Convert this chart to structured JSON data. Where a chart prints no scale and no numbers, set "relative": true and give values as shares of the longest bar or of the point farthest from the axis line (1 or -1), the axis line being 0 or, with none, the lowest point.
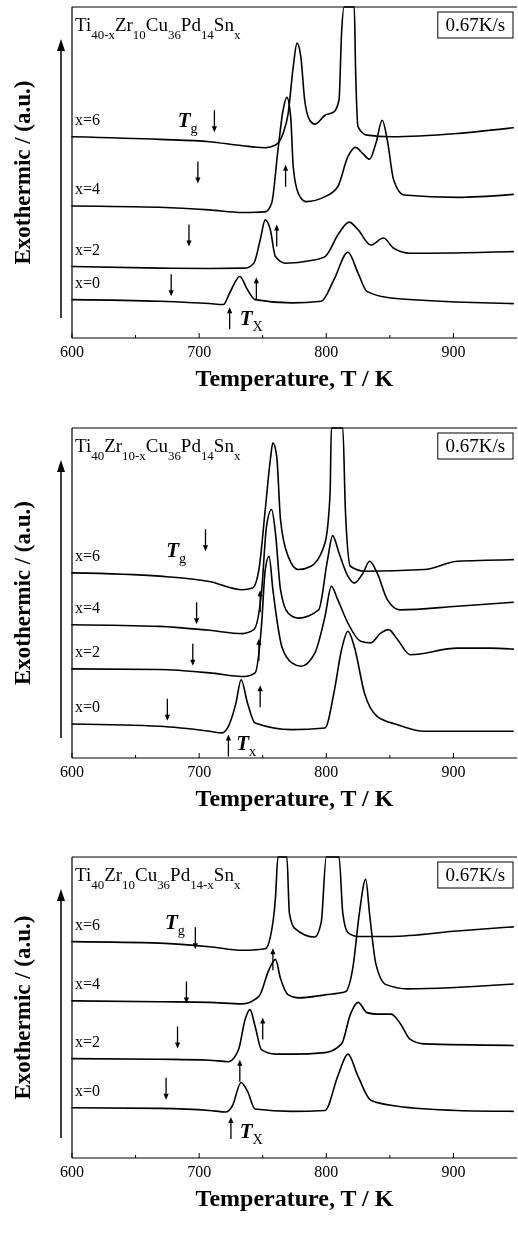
{
  "chart_data": [
    {
      "type": "line",
      "relative": true,
      "title": "Ti$_{40-x}$Zr$_{10}$Cu$_{36}$Pd$_{14}$Sn$_{x}$",
      "xlabel": "Temperature, T / K",
      "ylabel": "Exothermic / (a.u.)",
      "xlim": [
        600,
        950
      ],
      "xticks": [
        600,
        {
          "value": 650,
          "label": null
        },
        700,
        {
          "value": 750,
          "label": null
        },
        800,
        {
          "value": 850,
          "label": null
        },
        900
      ],
      "annotations": [
        "0.67K/s",
        "T$_{g}$",
        "T$_{X}$"
      ],
      "series": [
        {
          "name": "x=6",
          "color": "#000000",
          "x": [
            600,
            669,
            708,
            734,
            752,
            760,
            766,
            770,
            774,
            777,
            780,
            783,
            787,
            791,
            799,
            806,
            810,
            812,
            814,
            822,
            823,
            825,
            832,
            851,
            903,
            947
          ],
          "values": [
            0.608,
            0.6,
            0.593,
            0.581,
            0.575,
            0.583,
            0.618,
            0.678,
            0.819,
            0.891,
            0.849,
            0.719,
            0.658,
            0.646,
            0.673,
            0.683,
            0.719,
            0.92,
            1.0,
            1.0,
            0.819,
            0.638,
            0.613,
            0.608,
            0.618,
            0.635
          ]
        },
        {
          "name": "x=4",
          "color": "#000000",
          "x": [
            600,
            669,
            708,
            734,
            752,
            757,
            762,
            766,
            769,
            772,
            774,
            778,
            784,
            799,
            809,
            817,
            823,
            829,
            834,
            839,
            844,
            848,
            853,
            861,
            903,
            947
          ],
          "values": [
            0.399,
            0.395,
            0.387,
            0.379,
            0.381,
            0.407,
            0.568,
            0.688,
            0.727,
            0.668,
            0.518,
            0.437,
            0.412,
            0.427,
            0.457,
            0.548,
            0.576,
            0.556,
            0.54,
            0.588,
            0.658,
            0.598,
            0.477,
            0.432,
            0.425,
            0.434
          ]
        },
        {
          "name": "x=2",
          "color": "#000000",
          "x": [
            600,
            669,
            708,
            736,
            743,
            748,
            752,
            756,
            760,
            768,
            788,
            799,
            810,
            818,
            825,
            835,
            845,
            853,
            866,
            947
          ],
          "values": [
            0.216,
            0.211,
            0.21,
            0.211,
            0.226,
            0.296,
            0.357,
            0.327,
            0.246,
            0.226,
            0.234,
            0.246,
            0.317,
            0.35,
            0.327,
            0.281,
            0.302,
            0.271,
            0.256,
            0.261
          ]
        },
        {
          "name": "x=0",
          "color": "#000000",
          "x": [
            600,
            669,
            708,
            719,
            724,
            732,
            738,
            744,
            773,
            796,
            806,
            817,
            825,
            832,
            851,
            947
          ],
          "values": [
            0.116,
            0.111,
            0.104,
            0.101,
            0.136,
            0.186,
            0.146,
            0.116,
            0.106,
            0.111,
            0.176,
            0.259,
            0.196,
            0.141,
            0.121,
            0.104
          ]
        }
      ]
    },
    {
      "type": "line",
      "relative": true,
      "title": "Ti$_{40}$Zr$_{10-x}$Cu$_{36}$Pd$_{14}$Sn$_{x}$",
      "xlabel": "Temperature, T / K",
      "ylabel": "Exothermic / (a.u.)",
      "xlim": [
        600,
        950
      ],
      "xticks": [
        600,
        {
          "value": 650,
          "label": null
        },
        700,
        {
          "value": 750,
          "label": null
        },
        800,
        {
          "value": 850,
          "label": null
        },
        900
      ],
      "annotations": [
        "0.67K/s",
        "T$_{g}$",
        "T$_{x}$"
      ],
      "series": [
        {
          "name": "x=6",
          "color": "#000000",
          "x": [
            600,
            669,
            708,
            734,
            742,
            747,
            752,
            756,
            758,
            761,
            764,
            770,
            778,
            788,
            799,
            803,
            804,
            813,
            815,
            819,
            830,
            877,
            903,
            947
          ],
          "values": [
            0.561,
            0.551,
            0.535,
            0.51,
            0.515,
            0.571,
            0.753,
            0.904,
            0.955,
            0.914,
            0.722,
            0.611,
            0.571,
            0.581,
            0.652,
            0.803,
            1.0,
            1.0,
            0.753,
            0.581,
            0.566,
            0.571,
            0.596,
            0.601
          ]
        },
        {
          "name": "x=4",
          "color": "#000000",
          "x": [
            600,
            669,
            708,
            734,
            743,
            749,
            753,
            757,
            760,
            764,
            770,
            778,
            794,
            801,
            805,
            810,
            817,
            822,
            829,
            834,
            840,
            848,
            858,
            903,
            947
          ],
          "values": [
            0.404,
            0.399,
            0.387,
            0.377,
            0.389,
            0.5,
            0.702,
            0.753,
            0.682,
            0.51,
            0.439,
            0.424,
            0.449,
            0.601,
            0.674,
            0.621,
            0.551,
            0.53,
            0.561,
            0.596,
            0.561,
            0.48,
            0.449,
            0.46,
            0.472
          ]
        },
        {
          "name": "x=2",
          "color": "#000000",
          "x": [
            600,
            669,
            708,
            736,
            744,
            749,
            752,
            755,
            758,
            765,
            773,
            780,
            791,
            799,
            804,
            809,
            817,
            827,
            835,
            843,
            849,
            856,
            866,
            903,
            929,
            947
          ],
          "values": [
            0.27,
            0.268,
            0.258,
            0.247,
            0.258,
            0.399,
            0.571,
            0.611,
            0.51,
            0.338,
            0.288,
            0.278,
            0.318,
            0.429,
            0.52,
            0.48,
            0.409,
            0.354,
            0.349,
            0.379,
            0.389,
            0.359,
            0.313,
            0.333,
            0.333,
            0.33
          ]
        },
        {
          "name": "x=0",
          "color": "#000000",
          "x": [
            600,
            669,
            708,
            718,
            723,
            729,
            733,
            738,
            744,
            773,
            799,
            806,
            812,
            817,
            822,
            830,
            840,
            856,
            877,
            947
          ],
          "values": [
            0.103,
            0.096,
            0.081,
            0.076,
            0.096,
            0.167,
            0.237,
            0.167,
            0.106,
            0.086,
            0.091,
            0.197,
            0.328,
            0.384,
            0.338,
            0.197,
            0.126,
            0.101,
            0.081,
            0.081
          ]
        }
      ]
    },
    {
      "type": "line",
      "relative": true,
      "title": "Ti$_{40}$Zr$_{10}$Cu$_{36}$Pd$_{14-x}$Sn$_{x}$",
      "xlabel": "Temperature, T / K",
      "ylabel": "Exothermic / (a.u.)",
      "xlim": [
        600,
        950
      ],
      "xticks": [
        600,
        {
          "value": 650,
          "label": null
        },
        700,
        {
          "value": 750,
          "label": null
        },
        800,
        {
          "value": 850,
          "label": null
        },
        900
      ],
      "annotations": [
        "0.67K/s",
        "T$_{g}$",
        "T$_{X}$"
      ],
      "series": [
        {
          "name": "x=6",
          "color": "#000000",
          "x": [
            600,
            669,
            708,
            734,
            752,
            756,
            760,
            762,
            769,
            771,
            775,
            791,
            796,
            800,
            810,
            813,
            817,
            825,
            851,
            903,
            947
          ],
          "values": [
            0.719,
            0.714,
            0.702,
            0.69,
            0.695,
            0.734,
            0.862,
            1.0,
            1.0,
            0.813,
            0.764,
            0.734,
            0.783,
            1.0,
            1.0,
            0.813,
            0.749,
            0.736,
            0.736,
            0.754,
            0.768
          ]
        },
        {
          "name": "x=4",
          "color": "#000000",
          "x": [
            600,
            669,
            708,
            734,
            747,
            755,
            760,
            764,
            770,
            778,
            799,
            815,
            821,
            826,
            831,
            834,
            839,
            847,
            864,
            947
          ],
          "values": [
            0.522,
            0.519,
            0.517,
            0.512,
            0.537,
            0.626,
            0.66,
            0.596,
            0.542,
            0.532,
            0.542,
            0.552,
            0.635,
            0.813,
            0.926,
            0.813,
            0.645,
            0.576,
            0.562,
            0.578
          ]
        },
        {
          "name": "x=2",
          "color": "#000000",
          "x": [
            600,
            669,
            708,
            723,
            731,
            736,
            740,
            744,
            749,
            760,
            773,
            799,
            812,
            819,
            825,
            832,
            840,
            851,
            858,
            866,
            877,
            947
          ],
          "values": [
            0.33,
            0.328,
            0.325,
            0.32,
            0.36,
            0.458,
            0.493,
            0.438,
            0.36,
            0.345,
            0.345,
            0.35,
            0.379,
            0.478,
            0.517,
            0.483,
            0.478,
            0.478,
            0.448,
            0.394,
            0.379,
            0.374
          ]
        },
        {
          "name": "x=0",
          "color": "#000000",
          "x": [
            600,
            669,
            708,
            721,
            726,
            733,
            738,
            744,
            773,
            799,
            809,
            817,
            825,
            835,
            856,
            903,
            947
          ],
          "values": [
            0.167,
            0.165,
            0.158,
            0.153,
            0.172,
            0.251,
            0.222,
            0.163,
            0.155,
            0.158,
            0.271,
            0.345,
            0.271,
            0.192,
            0.172,
            0.158,
            0.155
          ]
        }
      ]
    }
  ]
}
